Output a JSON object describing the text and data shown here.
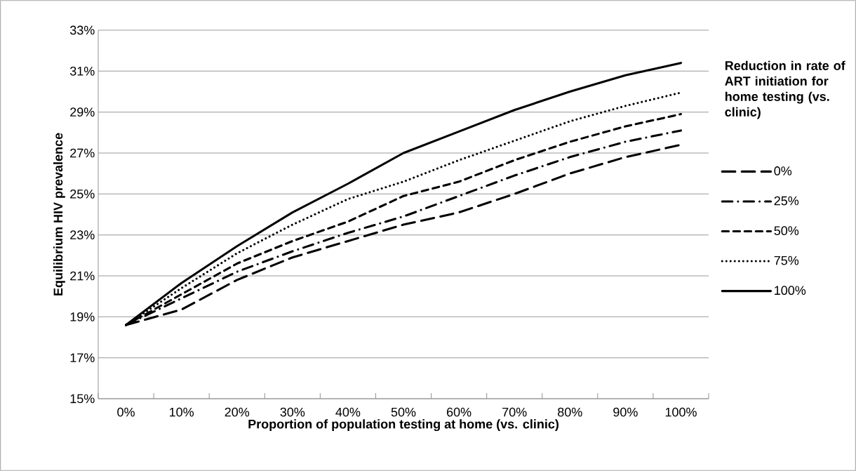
{
  "chart_data": {
    "type": "line",
    "xlabel": "Proportion of population testing at home (vs. clinic)",
    "ylabel": "Equilibrium HIV prevalence",
    "legend_title": "Reduction in rate of ART initiation for home testing (vs. clinic)",
    "categories": [
      "0%",
      "10%",
      "20%",
      "30%",
      "40%",
      "50%",
      "60%",
      "70%",
      "80%",
      "90%",
      "100%"
    ],
    "ylim": [
      15,
      33
    ],
    "yticks": [
      {
        "value": 15,
        "label": "15%"
      },
      {
        "value": 17,
        "label": "17%"
      },
      {
        "value": 19,
        "label": "19%"
      },
      {
        "value": 21,
        "label": "21%"
      },
      {
        "value": 23,
        "label": "23%"
      },
      {
        "value": 25,
        "label": "25%"
      },
      {
        "value": 27,
        "label": "27%"
      },
      {
        "value": 29,
        "label": "29%"
      },
      {
        "value": 31,
        "label": "31%"
      },
      {
        "value": 33,
        "label": "33%"
      }
    ],
    "grid": "y",
    "legend": "right",
    "series": [
      {
        "name": "0%",
        "color": "#000000",
        "line_style": "longdashed",
        "values": [
          18.6,
          19.35,
          20.8,
          21.9,
          22.7,
          23.5,
          24.1,
          25.0,
          26.0,
          26.8,
          27.4
        ]
      },
      {
        "name": "25%",
        "color": "#000000",
        "line_style": "dashdot",
        "values": [
          18.6,
          19.9,
          21.2,
          22.2,
          23.1,
          23.9,
          24.9,
          25.9,
          26.8,
          27.55,
          28.1
        ]
      },
      {
        "name": "50%",
        "color": "#000000",
        "line_style": "dashed",
        "values": [
          18.6,
          20.1,
          21.6,
          22.7,
          23.65,
          24.9,
          25.6,
          26.65,
          27.55,
          28.3,
          28.9
        ]
      },
      {
        "name": "75%",
        "color": "#000000",
        "line_style": "dotted",
        "values": [
          18.6,
          20.4,
          22.1,
          23.5,
          24.75,
          25.6,
          26.65,
          27.6,
          28.55,
          29.3,
          29.95
        ]
      },
      {
        "name": "100%",
        "color": "#000000",
        "line_style": "solid",
        "values": [
          18.6,
          20.65,
          22.45,
          24.1,
          25.5,
          27.0,
          28.05,
          29.1,
          30.0,
          30.8,
          31.4
        ]
      }
    ]
  }
}
